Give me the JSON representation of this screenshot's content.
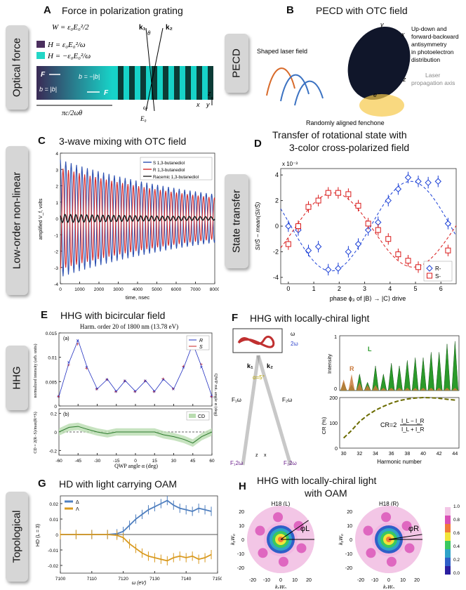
{
  "rows": {
    "optical_force": "Optical force",
    "pecd": "PECD",
    "low_order": "Low-order non-linear",
    "state_transfer": "State transfer",
    "hhg": "HHG",
    "topological": "Topological"
  },
  "panels": {
    "A": {
      "letter": "A",
      "title": "Force in polarization grating",
      "eq1": "W = ε₀E₀²/2",
      "eq2": "H = ε₀E₀²/ω",
      "eq3": "H = −ε₀E₀²/ω",
      "k1": "k₁",
      "k2": "k₂",
      "theta": "θ",
      "F": "F",
      "b_neg": "b = −|b|",
      "b_pos": "b = |b|",
      "width": "πc/2ωθ",
      "omega": "ω",
      "E0": "E₀",
      "x": "x",
      "y": "y",
      "z": "z"
    },
    "B": {
      "letter": "B",
      "title": "PECD with OTC field",
      "shaped": "Shaped laser field",
      "updown": "Up-down and",
      "fb": "forward-backward",
      "antisym": "antisymmetry",
      "photo": "in photoelectron",
      "dist": "distribution",
      "laser": "Laser",
      "prop": "propagation axis",
      "random": "Randomly aligned fenchone",
      "e_minus": "e⁻",
      "y": "y",
      "x": "x",
      "z": "z"
    },
    "C": {
      "letter": "C",
      "title": "3-wave mixing with OTC field",
      "ylabel": "amplified V_f, volts",
      "xlabel": "time, nsec"
    },
    "D": {
      "letter": "D",
      "title1": "Transfer of rotational state with",
      "title2": "3-color cross-polarized field",
      "exp": "x 10⁻³",
      "ylabel": "SI/S̄ − mean(SI/S̄)",
      "xlabel": "phase ϕ₃ of |B⟩ → |C⟩ drive"
    },
    "E": {
      "letter": "E",
      "title": "HHG with bicircular field",
      "subtitle": "Harm. order 20 of 1800 nm (13.78 eV)",
      "a": "(a)",
      "b": "(b)",
      "ylabel_a": "normalized intensity (arb. units)",
      "ylabel_b": "CD = 2(R−S)/max(R+S)",
      "ylabel_r": "QWP rot. angle α (deg)",
      "xlabel": "QWP angle α (deg)"
    },
    "F": {
      "letter": "F",
      "title": "HHG with locally-chiral light",
      "k1": "k₁",
      "k2": "k₂",
      "alpha": "α=5°",
      "omega": "ω",
      "two_omega": "2ω",
      "F1w": "F₁ω",
      "F2w": "F₂ω",
      "F1_2w": "F₁2ω",
      "F2_2w": "F₂2ω",
      "L": "L",
      "R": "R",
      "intensity": "Intensity",
      "cr_axis": "CR (%)",
      "cr_formula_lhs": "CR=2",
      "cr_num": "I_L − I_R",
      "cr_den": "I_L + I_R",
      "xlabel": "Harmonic number",
      "z": "z",
      "x": "x"
    },
    "G": {
      "letter": "G",
      "title": "HD with light carrying OAM",
      "ylabel": "HD (L = 3)",
      "xlabel": "ω (eV)"
    },
    "H": {
      "letter": "H",
      "title1": "HHG with locally-chiral light",
      "title2": "with OAM",
      "left_label": "H18 (L)",
      "right_label": "H18 (R)",
      "phi_L": "φL",
      "phi_R": "φR",
      "ylabel": "kᵧW₀",
      "xlabel": "kₓW₀"
    }
  },
  "chart_data": [
    {
      "id": "C",
      "type": "line",
      "title": "3-wave mixing with OTC field",
      "xlabel": "time, nsec",
      "ylabel": "amplified V_f, volts",
      "xlim": [
        0,
        8000
      ],
      "ylim": [
        -4,
        4
      ],
      "xticks": [
        0,
        1000,
        2000,
        3000,
        4000,
        5000,
        6000,
        7000,
        8000
      ],
      "yticks": [
        -4,
        -3,
        -2,
        -1,
        0,
        1,
        2,
        3,
        4
      ],
      "series": [
        {
          "name": "S 1,3-butanediol",
          "color": "#2b4fb0",
          "amplitude": 3.6,
          "phase": 0
        },
        {
          "name": "R 1,3-butanediol",
          "color": "#d42a2a",
          "amplitude": 3.1,
          "phase": 3.1416
        },
        {
          "name": "Racemic 1,3-butanediol",
          "color": "#222222",
          "amplitude": 0.25,
          "phase": 0.8
        }
      ],
      "oscillation_period_nsec": 280,
      "decay_time_nsec": 9000
    },
    {
      "id": "D",
      "type": "scatter",
      "xlim": [
        -0.3,
        6.6
      ],
      "ylim": [
        -4.5,
        4.5
      ],
      "xticks": [
        0,
        1,
        2,
        3,
        4,
        5,
        6
      ],
      "yticks": [
        -4,
        -2,
        0,
        2,
        4
      ],
      "series": [
        {
          "name": "R-",
          "color": "#1a3fd6",
          "x": [
            0,
            0.39,
            0.79,
            1.18,
            1.57,
            1.96,
            2.36,
            2.75,
            3.14,
            3.53,
            3.93,
            4.32,
            4.71,
            5.11,
            5.5,
            5.89,
            6.28
          ],
          "y": [
            0.0,
            -0.3,
            -1.9,
            -1.6,
            -3.4,
            -3.3,
            -2.0,
            -1.4,
            -0.3,
            0.3,
            2.0,
            2.9,
            3.8,
            3.5,
            3.4,
            3.5,
            0.2
          ]
        },
        {
          "name": "S-",
          "color": "#d91a1a",
          "x": [
            0,
            0.39,
            0.79,
            1.18,
            1.57,
            1.96,
            2.36,
            2.75,
            3.14,
            3.53,
            3.93,
            4.32,
            4.71,
            5.11,
            5.5,
            5.89,
            6.28
          ],
          "y": [
            -1.4,
            0.0,
            1.5,
            2.0,
            2.6,
            2.6,
            2.5,
            1.6,
            0.2,
            -0.3,
            -1.0,
            -2.2,
            -2.7,
            -3.2,
            -3.4,
            -3.3,
            -1.9
          ]
        }
      ]
    },
    {
      "id": "E",
      "type": "line",
      "xlim": [
        -60,
        60
      ],
      "xticks": [
        -60,
        -45,
        -30,
        -15,
        0,
        15,
        30,
        45,
        60
      ],
      "ylim_a": [
        0,
        0.015
      ],
      "yticks_a": [
        0,
        0.005,
        0.01,
        0.015
      ],
      "ylim_b": [
        -0.25,
        0.25
      ],
      "yticks_b": [
        -0.2,
        0,
        0.2
      ],
      "legend_a": [
        "R",
        "S"
      ],
      "legend_b": [
        "CD"
      ],
      "x": [
        -60,
        -52,
        -45,
        -38,
        -30,
        -22,
        -15,
        -8,
        0,
        8,
        15,
        22,
        30,
        38,
        45,
        52,
        60
      ],
      "R": [
        0.002,
        0.009,
        0.0135,
        0.008,
        0.0035,
        0.0055,
        0.003,
        0.0052,
        0.003,
        0.0052,
        0.003,
        0.0055,
        0.0035,
        0.008,
        0.0128,
        0.008,
        0.002
      ],
      "S": [
        0.002,
        0.0085,
        0.0128,
        0.0078,
        0.0035,
        0.0055,
        0.003,
        0.0052,
        0.003,
        0.0052,
        0.003,
        0.0056,
        0.0036,
        0.0082,
        0.0135,
        0.0086,
        0.002
      ],
      "CD": [
        0.0,
        0.05,
        0.06,
        0.03,
        0.0,
        -0.02,
        0.0,
        0.0,
        0.0,
        0.0,
        0.0,
        -0.03,
        -0.05,
        -0.08,
        -0.12,
        -0.05,
        0.0
      ]
    },
    {
      "id": "F",
      "type": "bar",
      "harmonics": [
        30,
        31,
        32,
        33,
        34,
        35,
        36,
        37,
        38,
        39,
        40,
        41,
        42,
        43,
        44
      ],
      "L_intensity": [
        0.15,
        0.1,
        0.3,
        0.15,
        0.45,
        0.3,
        0.5,
        0.45,
        0.55,
        0.6,
        0.6,
        0.7,
        0.7,
        0.85,
        0.9
      ],
      "R_intensity": [
        0.2,
        0.3,
        0.15,
        0.1,
        0.1,
        0.05,
        0.05,
        0.05,
        0.05,
        0.05,
        0.05,
        0.05,
        0.05,
        0.05,
        0.05
      ],
      "CR": [
        40,
        70,
        105,
        130,
        150,
        165,
        178,
        188,
        194,
        198,
        200,
        199,
        197,
        193,
        190
      ],
      "cr_ylim": [
        0,
        200
      ],
      "cr_yticks": [
        0,
        100,
        200
      ]
    },
    {
      "id": "G",
      "type": "line",
      "xlim": [
        7100,
        7150
      ],
      "xticks": [
        7100,
        7110,
        7120,
        7130,
        7140,
        7150
      ],
      "ylim": [
        -0.025,
        0.025
      ],
      "yticks": [
        -0.02,
        -0.01,
        0,
        0.01,
        0.02
      ],
      "series": [
        {
          "name": "Δ",
          "color": "#4f7fbf",
          "x": [
            7100,
            7105,
            7110,
            7115,
            7118,
            7120,
            7122,
            7124,
            7126,
            7128,
            7130,
            7132,
            7134,
            7136,
            7138,
            7140,
            7142,
            7144,
            7146,
            7148
          ],
          "y": [
            0.0,
            0.0,
            0.0,
            0.0,
            0.0005,
            0.002,
            0.006,
            0.01,
            0.013,
            0.016,
            0.018,
            0.02,
            0.022,
            0.019,
            0.017,
            0.016,
            0.015,
            0.017,
            0.016,
            0.015
          ]
        },
        {
          "name": "Λ",
          "color": "#d99a1f",
          "x": [
            7100,
            7105,
            7110,
            7115,
            7118,
            7120,
            7122,
            7124,
            7126,
            7128,
            7130,
            7132,
            7134,
            7136,
            7138,
            7140,
            7142,
            7144,
            7146,
            7148
          ],
          "y": [
            0.0,
            0.0,
            0.0,
            0.0,
            -0.0005,
            -0.002,
            -0.006,
            -0.009,
            -0.012,
            -0.014,
            -0.015,
            -0.016,
            -0.017,
            -0.015,
            -0.014,
            -0.015,
            -0.014,
            -0.016,
            -0.015,
            -0.013
          ]
        }
      ]
    },
    {
      "id": "H",
      "type": "heatmap",
      "xlim": [
        -25,
        25
      ],
      "ylim": [
        -25,
        25
      ],
      "xticks": [
        -20,
        -10,
        0,
        10,
        20
      ],
      "yticks": [
        -20,
        -10,
        0,
        10,
        20
      ],
      "colorbar_ticks": [
        0.0,
        0.2,
        0.4,
        0.6,
        0.8,
        1.0
      ]
    }
  ]
}
